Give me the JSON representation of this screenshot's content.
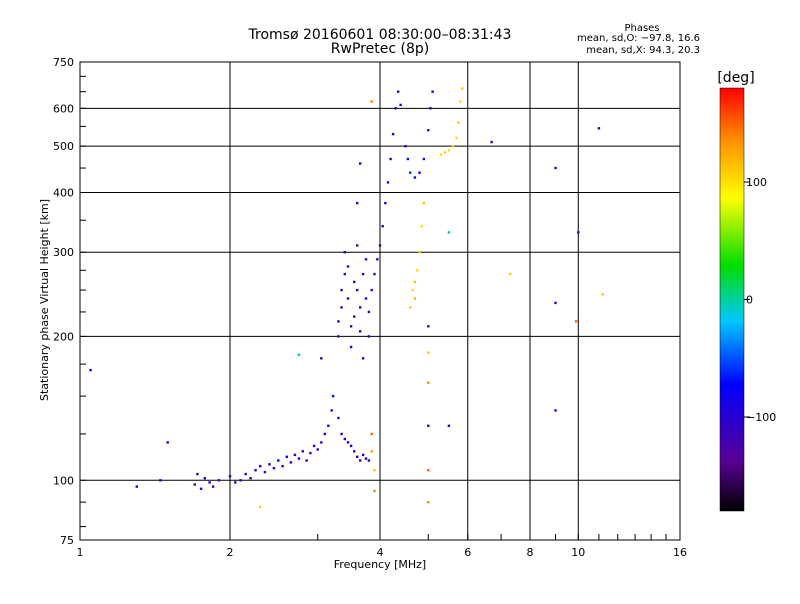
{
  "chart_data": {
    "type": "scatter",
    "title": "Tromsø 20160601 08:30:00–08:31:43",
    "subtitle": "RwPretec (8p)",
    "xlabel": "Frequency [MHz]",
    "ylabel": "Stationary phase Virtual Height [km]",
    "x_scale": "log",
    "y_scale": "log",
    "xlim": [
      1,
      16
    ],
    "ylim": [
      75,
      750
    ],
    "x_ticks": [
      1,
      2,
      4,
      6,
      8,
      10,
      16
    ],
    "x_tick_labels": [
      "1",
      "2",
      "4",
      "6",
      "8",
      "10",
      "16"
    ],
    "y_ticks": [
      75,
      100,
      200,
      300,
      400,
      500,
      600,
      750
    ],
    "y_tick_labels": [
      "75",
      "100",
      "200",
      "300",
      "400",
      "500",
      "600",
      "750"
    ],
    "grid": true,
    "phases_box": {
      "heading": "Phases",
      "line_o": "mean, sd,O: −97.8, 16.6",
      "line_x": "mean, sd,X:  94.3, 20.3"
    },
    "colorbar": {
      "label": "[deg]",
      "min": -180,
      "max": 180,
      "ticks": [
        100,
        0,
        -100
      ],
      "tick_labels": [
        "100",
        "0",
        "−100"
      ]
    },
    "series": [
      {
        "values_note": "points as [frequency_MHz, height_km, phase_deg]",
        "points": [
          [
            1.05,
            170,
            -100
          ],
          [
            1.3,
            97,
            -100
          ],
          [
            1.45,
            100,
            -100
          ],
          [
            1.5,
            120,
            -100
          ],
          [
            1.7,
            98,
            -110
          ],
          [
            1.72,
            103,
            -105
          ],
          [
            1.75,
            96,
            -100
          ],
          [
            1.78,
            101,
            -110
          ],
          [
            1.82,
            99,
            -100
          ],
          [
            1.85,
            97,
            -105
          ],
          [
            1.9,
            100,
            -110
          ],
          [
            2.0,
            102,
            -100
          ],
          [
            2.05,
            99,
            -105
          ],
          [
            2.1,
            100,
            -95
          ],
          [
            2.15,
            103,
            -100
          ],
          [
            2.2,
            101,
            -110
          ],
          [
            2.25,
            105,
            -100
          ],
          [
            2.3,
            107,
            -95
          ],
          [
            2.35,
            104,
            -100
          ],
          [
            2.4,
            108,
            -90
          ],
          [
            2.45,
            106,
            -100
          ],
          [
            2.5,
            110,
            -80
          ],
          [
            2.55,
            107,
            -100
          ],
          [
            2.6,
            112,
            -70
          ],
          [
            2.65,
            109,
            -90
          ],
          [
            2.7,
            113,
            -100
          ],
          [
            2.75,
            111,
            -80
          ],
          [
            2.8,
            115,
            -100
          ],
          [
            2.85,
            110,
            -90
          ],
          [
            2.9,
            114,
            -100
          ],
          [
            2.95,
            118,
            -100
          ],
          [
            3.0,
            116,
            -95
          ],
          [
            3.05,
            120,
            -100
          ],
          [
            3.1,
            125,
            -100
          ],
          [
            3.15,
            130,
            -100
          ],
          [
            3.2,
            140,
            -100
          ],
          [
            3.22,
            150,
            -70
          ],
          [
            3.3,
            135,
            -110
          ],
          [
            3.35,
            125,
            -100
          ],
          [
            3.4,
            122,
            -100
          ],
          [
            3.45,
            120,
            -100
          ],
          [
            3.5,
            118,
            -95
          ],
          [
            3.55,
            115,
            -100
          ],
          [
            3.6,
            112,
            -100
          ],
          [
            3.65,
            110,
            -105
          ],
          [
            3.7,
            113,
            -100
          ],
          [
            3.75,
            111,
            -100
          ],
          [
            3.8,
            110,
            -110
          ],
          [
            2.3,
            88,
            110
          ],
          [
            2.75,
            183,
            0
          ],
          [
            3.05,
            180,
            -100
          ],
          [
            3.9,
            95,
            140
          ],
          [
            3.9,
            105,
            110
          ],
          [
            3.85,
            115,
            130
          ],
          [
            3.85,
            125,
            150
          ],
          [
            3.3,
            200,
            -110
          ],
          [
            3.3,
            215,
            -100
          ],
          [
            3.35,
            230,
            -105
          ],
          [
            3.35,
            250,
            -100
          ],
          [
            3.4,
            270,
            -110
          ],
          [
            3.4,
            300,
            -100
          ],
          [
            3.45,
            280,
            -105
          ],
          [
            3.45,
            240,
            -100
          ],
          [
            3.5,
            210,
            -110
          ],
          [
            3.5,
            190,
            -100
          ],
          [
            3.55,
            220,
            -105
          ],
          [
            3.55,
            260,
            -100
          ],
          [
            3.6,
            310,
            -110
          ],
          [
            3.6,
            250,
            -100
          ],
          [
            3.65,
            205,
            -105
          ],
          [
            3.65,
            230,
            -100
          ],
          [
            3.7,
            180,
            -110
          ],
          [
            3.7,
            270,
            -100
          ],
          [
            3.75,
            290,
            -105
          ],
          [
            3.75,
            240,
            -100
          ],
          [
            3.8,
            200,
            -110
          ],
          [
            3.8,
            225,
            -100
          ],
          [
            3.85,
            250,
            -105
          ],
          [
            3.9,
            270,
            -100
          ],
          [
            3.95,
            290,
            -110
          ],
          [
            4.0,
            310,
            -100
          ],
          [
            4.05,
            340,
            -110
          ],
          [
            4.1,
            380,
            -100
          ],
          [
            4.15,
            420,
            -110
          ],
          [
            4.2,
            470,
            -100
          ],
          [
            4.25,
            530,
            -110
          ],
          [
            4.3,
            600,
            -100
          ],
          [
            4.35,
            650,
            -105
          ],
          [
            4.4,
            610,
            -100
          ],
          [
            3.6,
            380,
            -110
          ],
          [
            3.65,
            460,
            -100
          ],
          [
            4.5,
            500,
            -80
          ],
          [
            4.55,
            470,
            -70
          ],
          [
            4.6,
            440,
            -60
          ],
          [
            4.7,
            430,
            -70
          ],
          [
            4.8,
            440,
            -80
          ],
          [
            4.9,
            470,
            -90
          ],
          [
            5.0,
            540,
            -100
          ],
          [
            5.05,
            600,
            -100
          ],
          [
            5.1,
            650,
            -100
          ],
          [
            4.6,
            230,
            110
          ],
          [
            4.65,
            250,
            100
          ],
          [
            4.7,
            260,
            110
          ],
          [
            4.75,
            275,
            100
          ],
          [
            4.8,
            300,
            110
          ],
          [
            4.85,
            340,
            100
          ],
          [
            4.9,
            380,
            110
          ],
          [
            4.7,
            240,
            120
          ],
          [
            5.3,
            480,
            100
          ],
          [
            5.4,
            485,
            110
          ],
          [
            5.5,
            490,
            100
          ],
          [
            5.6,
            500,
            110
          ],
          [
            5.7,
            520,
            100
          ],
          [
            5.75,
            560,
            110
          ],
          [
            5.8,
            620,
            100
          ],
          [
            5.85,
            660,
            110
          ],
          [
            3.85,
            620,
            140
          ],
          [
            5.0,
            90,
            140
          ],
          [
            5.0,
            105,
            150
          ],
          [
            5.0,
            130,
            -100
          ],
          [
            5.0,
            160,
            140
          ],
          [
            5.0,
            185,
            110
          ],
          [
            5.0,
            210,
            -100
          ],
          [
            5.5,
            130,
            -100
          ],
          [
            5.5,
            330,
            10
          ],
          [
            6.7,
            510,
            -100
          ],
          [
            7.3,
            270,
            110
          ],
          [
            9.0,
            140,
            -100
          ],
          [
            9.0,
            235,
            -100
          ],
          [
            9.0,
            450,
            -100
          ],
          [
            9.9,
            215,
            150
          ],
          [
            10.0,
            330,
            -100
          ],
          [
            11.0,
            545,
            -100
          ],
          [
            11.2,
            245,
            110
          ]
        ]
      }
    ]
  }
}
